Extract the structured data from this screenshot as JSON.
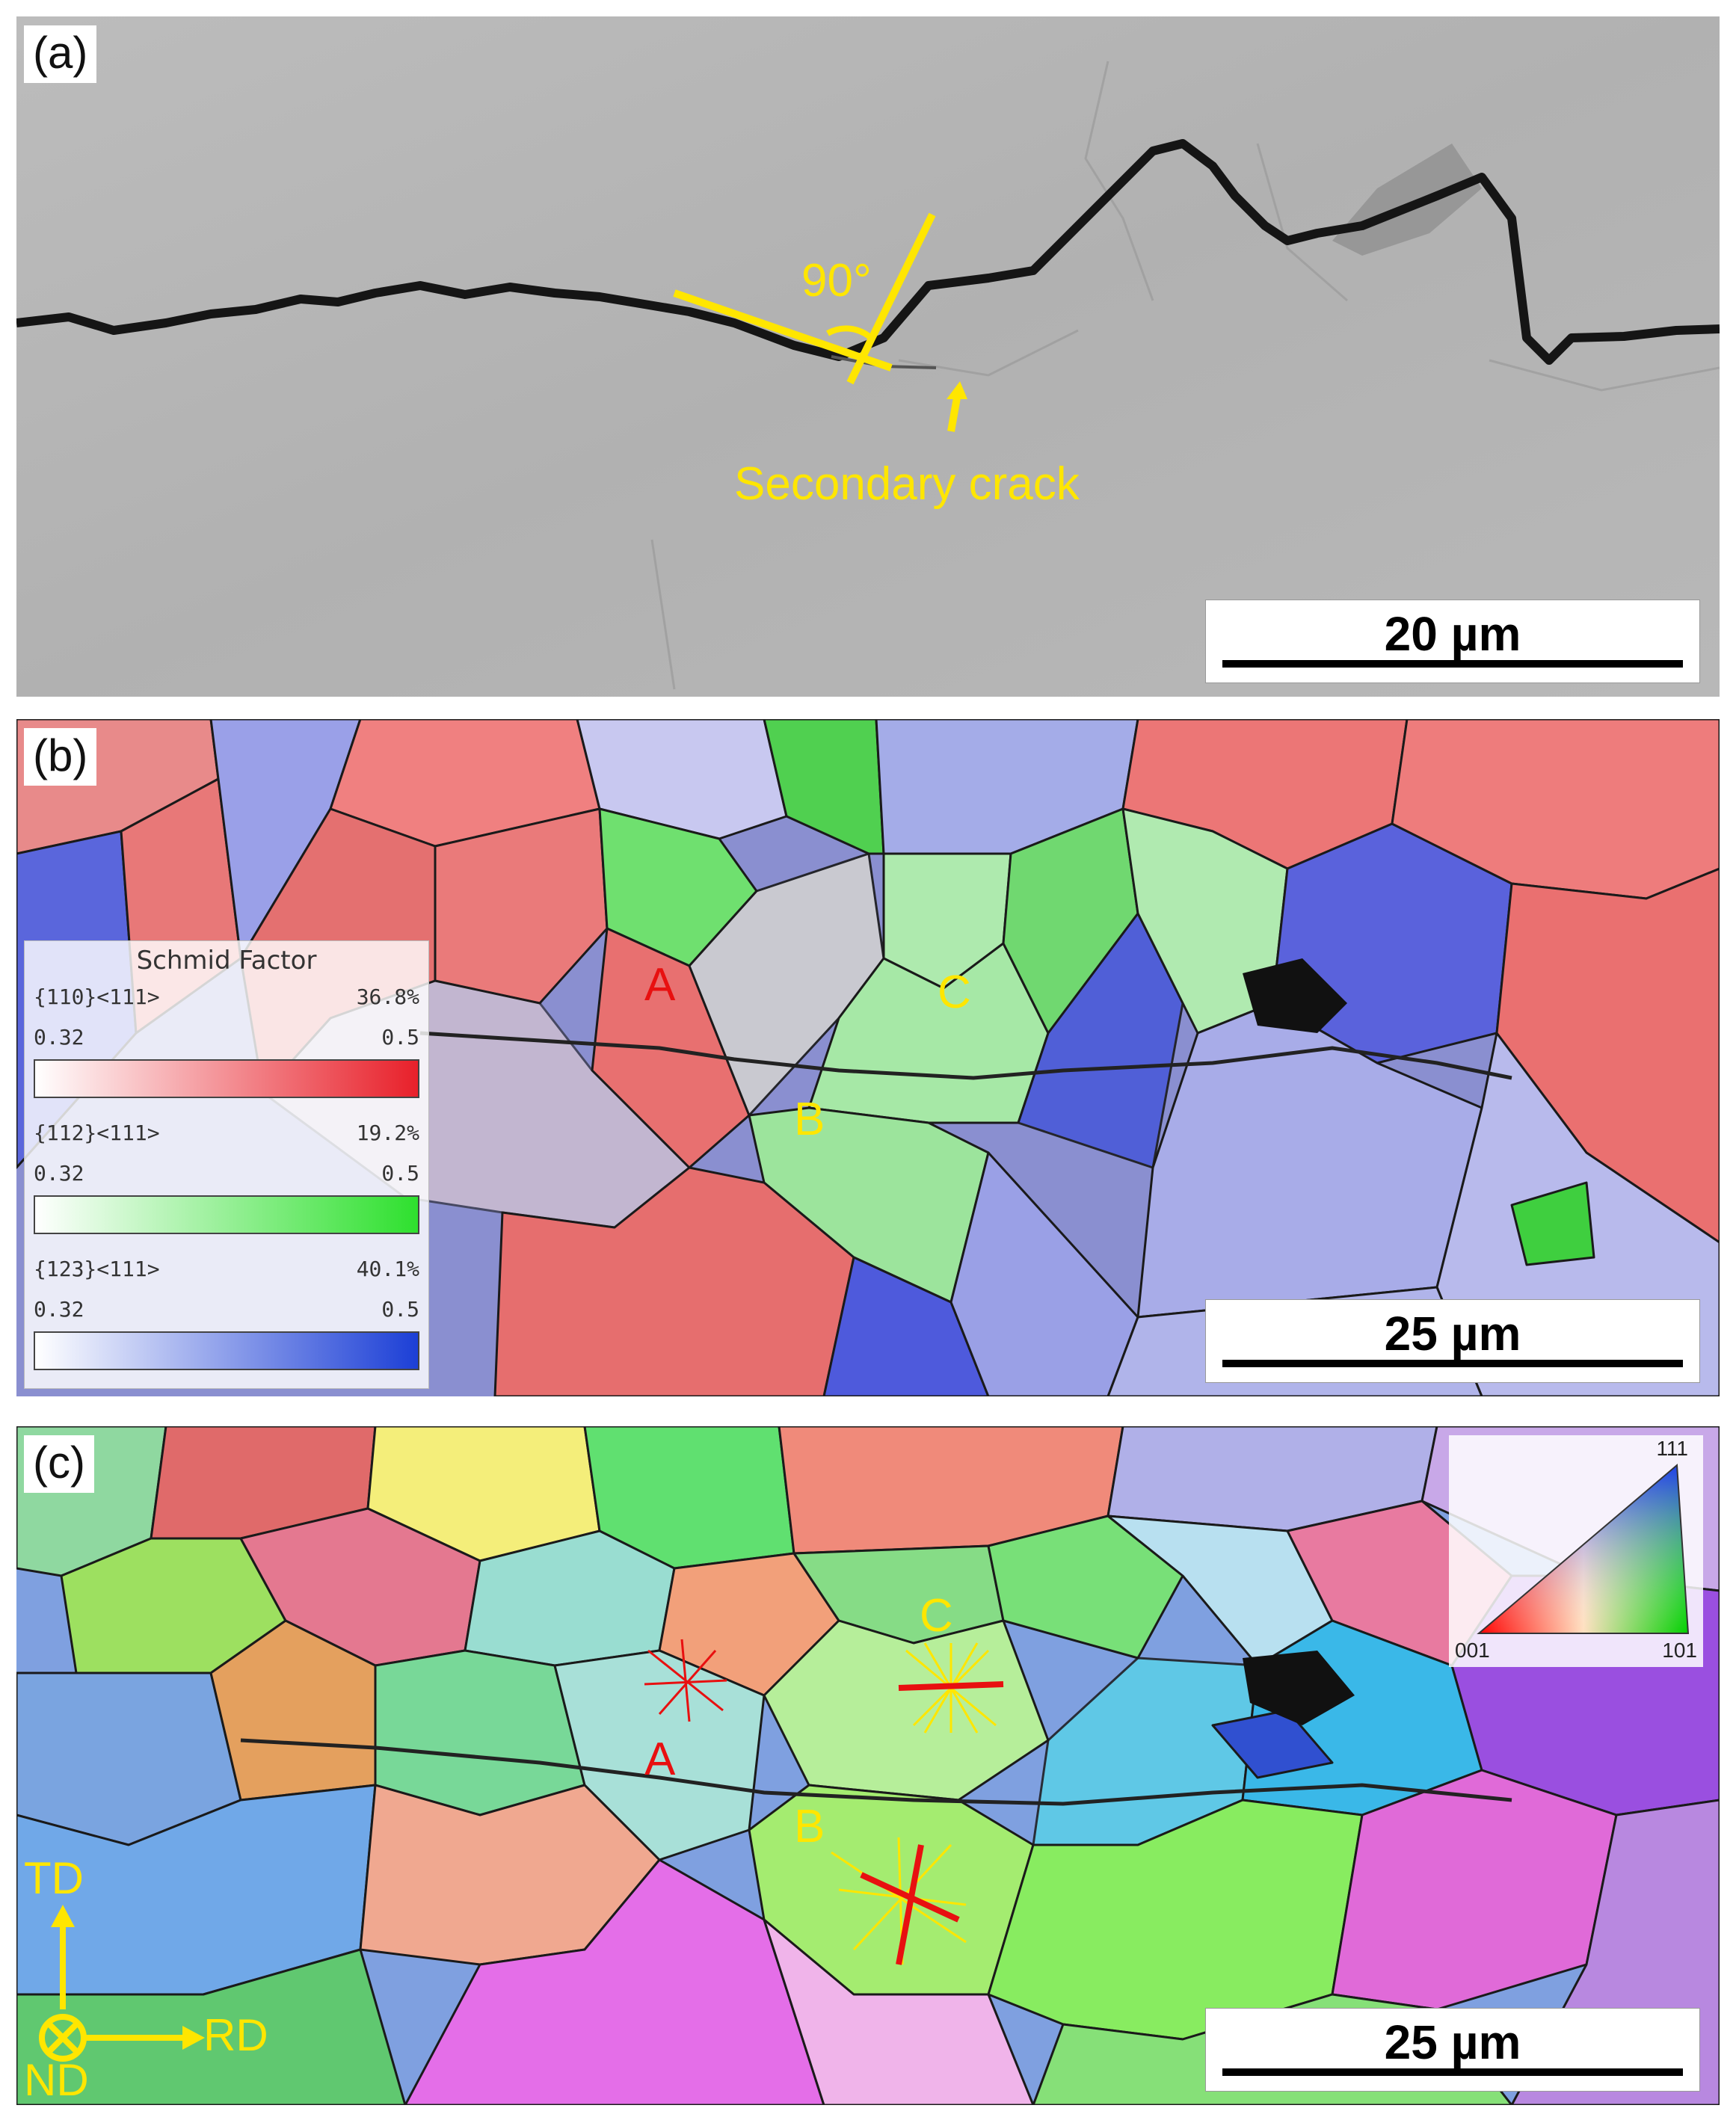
{
  "panel_a": {
    "label": "(a)",
    "angle_text": "90°",
    "secondary_crack_text": "Secondary crack",
    "scale_bar_text": "20 µm",
    "annotation_color": "#ffe600"
  },
  "panel_b": {
    "label": "(b)",
    "grain_labels": {
      "a": "A",
      "b": "B",
      "c": "C"
    },
    "scale_bar_text": "25 µm",
    "legend": {
      "title": "Schmid Factor",
      "rows": [
        {
          "system": "{110}<111>",
          "percent": "36.8%",
          "min": "0.32",
          "max": "0.5",
          "color": "#e8202a"
        },
        {
          "system": "{112}<111>",
          "percent": "19.2%",
          "min": "0.32",
          "max": "0.5",
          "color": "#2ee02e"
        },
        {
          "system": "{123}<111>",
          "percent": "40.1%",
          "min": "0.32",
          "max": "0.5",
          "color": "#1c3fd6"
        }
      ]
    }
  },
  "panel_c": {
    "label": "(c)",
    "grain_labels": {
      "a": "A",
      "b": "B",
      "c": "C"
    },
    "scale_bar_text": "25 µm",
    "ipf_key": {
      "top": "111",
      "left": "001",
      "right": "101"
    },
    "axes": {
      "td": "TD",
      "rd": "RD",
      "nd": "ND"
    }
  }
}
